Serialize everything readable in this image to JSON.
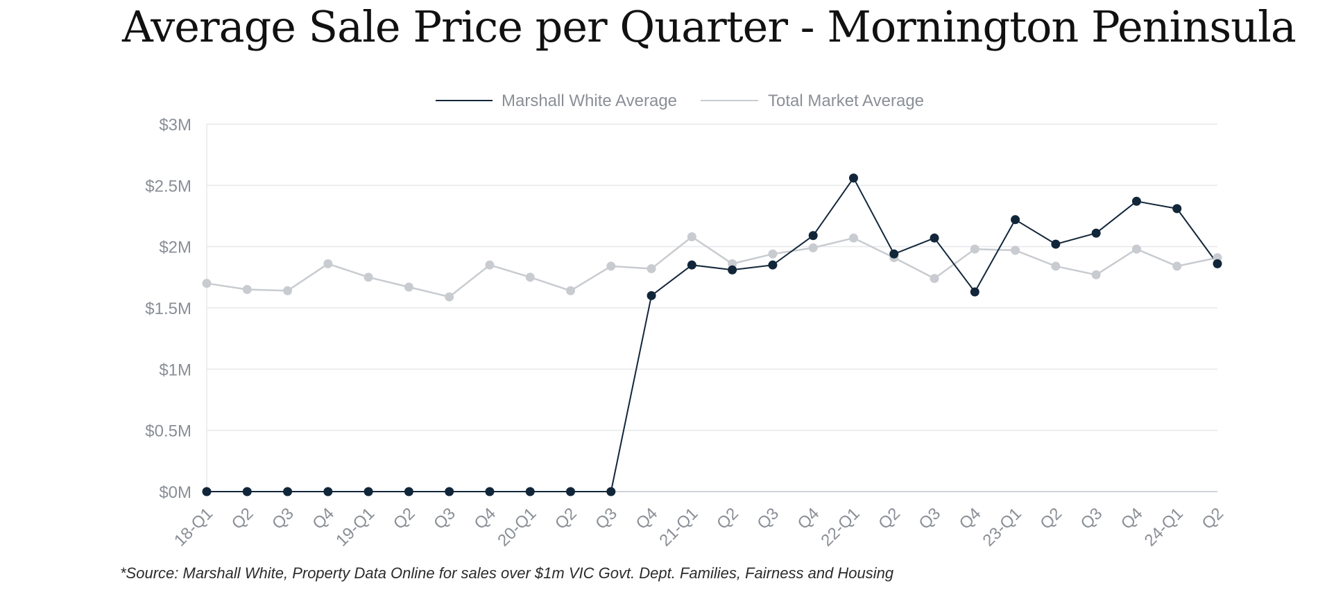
{
  "page": {
    "title": "Average Sale Price per Quarter - Mornington Peninsula",
    "source_note": "*Source: Marshall White, Property Data Online for sales over $1m VIC Govt. Dept. Families, Fairness and Housing"
  },
  "chart_data": {
    "type": "line",
    "title": "Average Sale Price per Quarter - Mornington Peninsula",
    "xlabel": "",
    "ylabel": "",
    "categories": [
      "18-Q1",
      "Q2",
      "Q3",
      "Q4",
      "19-Q1",
      "Q2",
      "Q3",
      "Q4",
      "20-Q1",
      "Q2",
      "Q3",
      "Q4",
      "21-Q1",
      "Q2",
      "Q3",
      "Q4",
      "22-Q1",
      "Q2",
      "Q3",
      "Q4",
      "23-Q1",
      "Q2",
      "Q3",
      "Q4",
      "24-Q1",
      "Q2"
    ],
    "ylim": [
      0,
      3
    ],
    "y_unit": "million AUD",
    "y_ticks": [
      0,
      0.5,
      1,
      1.5,
      2,
      2.5,
      3
    ],
    "y_tick_labels": [
      "$0M",
      "$0.5M",
      "$1M",
      "$1.5M",
      "$2M",
      "$2.5M",
      "$3M"
    ],
    "grid": true,
    "legend_position": "top-center",
    "series": [
      {
        "name": "Marshall White Average",
        "color": "#12263a",
        "values": [
          0,
          0,
          0,
          0,
          0,
          0,
          0,
          0,
          0,
          0,
          0,
          1.6,
          1.85,
          1.81,
          1.85,
          2.09,
          2.56,
          1.94,
          2.07,
          1.63,
          2.22,
          2.02,
          2.11,
          2.37,
          2.31,
          1.86
        ]
      },
      {
        "name": "Total Market Average",
        "color": "#c8cbd0",
        "values": [
          1.7,
          1.65,
          1.64,
          1.86,
          1.75,
          1.67,
          1.59,
          1.85,
          1.75,
          1.64,
          1.84,
          1.82,
          2.08,
          1.86,
          1.94,
          1.99,
          2.07,
          1.91,
          1.74,
          1.98,
          1.97,
          1.84,
          1.77,
          1.98,
          1.84,
          1.91
        ]
      }
    ]
  }
}
